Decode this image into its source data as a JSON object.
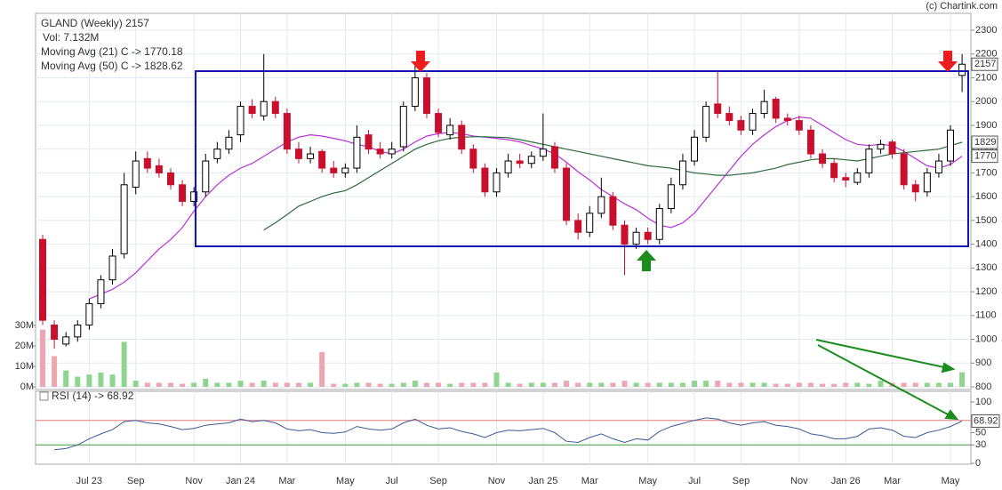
{
  "chart_data": {
    "type": "candlestick",
    "title": "GLAND (Weekly) 2157",
    "subtitle": "Vol: 7.132M",
    "credit": "(c) Chartink.com",
    "categories": [
      null,
      null,
      null,
      null,
      "Jul 23",
      null,
      null,
      null,
      "Sep",
      null,
      null,
      null,
      null,
      "Nov",
      null,
      null,
      null,
      "Jan 24",
      null,
      null,
      null,
      "Mar",
      null,
      null,
      null,
      null,
      "May",
      null,
      null,
      null,
      "Jul",
      null,
      null,
      null,
      "Sep",
      null,
      null,
      null,
      null,
      "Nov",
      null,
      null,
      null,
      "Jan 25",
      null,
      null,
      null,
      "Mar",
      null,
      null,
      null,
      null,
      "May",
      null,
      null,
      null,
      "Jul",
      null,
      null,
      null,
      "Sep",
      null,
      null,
      null,
      null,
      "Nov",
      null,
      null,
      null,
      "Jan 26",
      null,
      null,
      null,
      "Mar",
      null,
      null,
      null,
      null,
      "May",
      null
    ],
    "open": [
      1420,
      1060,
      980,
      1010,
      1060,
      1150,
      1250,
      1360,
      1640,
      1760,
      1730,
      1700,
      1650,
      1580,
      1620,
      1760,
      1800,
      1860,
      1980,
      1940,
      2000,
      1950,
      1800,
      1760,
      1790,
      1720,
      1700,
      1720,
      1860,
      1800,
      1780,
      1810,
      1980,
      2100,
      1950,
      1860,
      1900,
      1800,
      1720,
      1620,
      1700,
      1750,
      1740,
      1770,
      1810,
      1720,
      1500,
      1450,
      1530,
      1600,
      1480,
      1400,
      1450,
      1420,
      1550,
      1650,
      1750,
      1850,
      1990,
      1950,
      1920,
      1880,
      1950,
      2010,
      1930,
      1920,
      1880,
      1780,
      1740,
      1680,
      1660,
      1700,
      1800,
      1830,
      1780,
      1650,
      1620,
      1700,
      1750,
      2110
    ],
    "high": [
      1440,
      1080,
      1030,
      1080,
      1170,
      1270,
      1380,
      1700,
      1790,
      1790,
      1760,
      1720,
      1670,
      1640,
      1780,
      1830,
      1880,
      2000,
      2010,
      2200,
      2020,
      1970,
      1830,
      1810,
      1800,
      1750,
      1740,
      1900,
      1880,
      1830,
      1830,
      2000,
      2150,
      2120,
      1970,
      1930,
      1920,
      1820,
      1740,
      1720,
      1780,
      1780,
      1790,
      1950,
      1830,
      1740,
      1530,
      1560,
      1680,
      1620,
      1500,
      1470,
      1470,
      1570,
      1680,
      1780,
      1880,
      2000,
      2130,
      1980,
      1940,
      1970,
      2050,
      2020,
      1950,
      1940,
      1900,
      1800,
      1760,
      1700,
      1720,
      1820,
      1840,
      1840,
      1800,
      1670,
      1720,
      1780,
      1900,
      2200
    ],
    "low": [
      1060,
      960,
      970,
      990,
      1040,
      1130,
      1230,
      1340,
      1610,
      1700,
      1680,
      1630,
      1560,
      1560,
      1600,
      1740,
      1780,
      1830,
      1930,
      1920,
      1930,
      1780,
      1740,
      1740,
      1700,
      1680,
      1680,
      1700,
      1780,
      1760,
      1760,
      1790,
      1960,
      1930,
      1850,
      1840,
      1780,
      1700,
      1600,
      1600,
      1680,
      1720,
      1720,
      1750,
      1700,
      1480,
      1420,
      1430,
      1510,
      1460,
      1270,
      1380,
      1400,
      1400,
      1530,
      1630,
      1730,
      1830,
      1930,
      1900,
      1860,
      1860,
      1930,
      1910,
      1900,
      1860,
      1760,
      1720,
      1660,
      1640,
      1650,
      1680,
      1780,
      1760,
      1630,
      1580,
      1600,
      1680,
      1730,
      2040
    ],
    "close": [
      1080,
      1000,
      1010,
      1060,
      1150,
      1250,
      1350,
      1650,
      1750,
      1720,
      1700,
      1650,
      1580,
      1620,
      1750,
      1800,
      1850,
      1980,
      1950,
      2000,
      1950,
      1800,
      1760,
      1780,
      1720,
      1700,
      1720,
      1850,
      1800,
      1780,
      1800,
      1980,
      2100,
      1950,
      1870,
      1900,
      1800,
      1720,
      1620,
      1700,
      1750,
      1740,
      1770,
      1800,
      1720,
      1500,
      1450,
      1530,
      1600,
      1480,
      1400,
      1450,
      1420,
      1550,
      1650,
      1750,
      1850,
      1980,
      1950,
      1920,
      1880,
      1950,
      2000,
      1930,
      1920,
      1880,
      1780,
      1740,
      1680,
      1670,
      1700,
      1800,
      1820,
      1780,
      1650,
      1620,
      1700,
      1750,
      1880,
      2157
    ],
    "up_color": "#000000",
    "down_color": "#c8102e",
    "series": [
      {
        "name": "Moving Avg (21) C -> 1770.18",
        "color": "#b830d8",
        "values": [
          null,
          null,
          null,
          null,
          1170,
          1190,
          1210,
          1240,
          1280,
          1330,
          1380,
          1420,
          1470,
          1540,
          1600,
          1650,
          1690,
          1720,
          1740,
          1770,
          1800,
          1830,
          1850,
          1860,
          1855,
          1845,
          1835,
          1820,
          1810,
          1790,
          1780,
          1800,
          1830,
          1855,
          1865,
          1870,
          1865,
          1855,
          1850,
          1845,
          1840,
          1830,
          1815,
          1800,
          1780,
          1745,
          1705,
          1670,
          1630,
          1600,
          1570,
          1545,
          1510,
          1480,
          1470,
          1490,
          1530,
          1590,
          1650,
          1710,
          1770,
          1820,
          1860,
          1895,
          1920,
          1935,
          1930,
          1900,
          1870,
          1840,
          1820,
          1815,
          1820,
          1815,
          1790,
          1760,
          1730,
          1720,
          1735,
          1770.18
        ]
      },
      {
        "name": "Moving Avg (50) C -> 1828.62",
        "color": "#2e6b3a",
        "values": [
          null,
          null,
          null,
          null,
          null,
          null,
          null,
          null,
          null,
          null,
          null,
          null,
          null,
          null,
          null,
          null,
          null,
          null,
          null,
          1460,
          1490,
          1525,
          1560,
          1580,
          1600,
          1615,
          1625,
          1650,
          1680,
          1710,
          1740,
          1770,
          1800,
          1820,
          1835,
          1845,
          1850,
          1852,
          1852,
          1850,
          1848,
          1840,
          1830,
          1820,
          1810,
          1800,
          1790,
          1780,
          1770,
          1760,
          1750,
          1740,
          1730,
          1725,
          1720,
          1710,
          1700,
          1695,
          1690,
          1690,
          1695,
          1700,
          1710,
          1720,
          1735,
          1745,
          1755,
          1760,
          1760,
          1755,
          1750,
          1760,
          1770,
          1780,
          1785,
          1790,
          1795,
          1800,
          1815,
          1828.62
        ]
      }
    ],
    "ylim": [
      800,
      2300
    ],
    "yticks": [
      800,
      900,
      1000,
      1100,
      1200,
      1300,
      1400,
      1500,
      1600,
      1700,
      1800,
      1900,
      2000,
      2100,
      2200,
      2300
    ],
    "badges": [
      {
        "value": 2157,
        "label": "2157"
      },
      {
        "value": 1828.62,
        "label": "1829"
      },
      {
        "value": 1770.18,
        "label": "1770"
      }
    ],
    "grid": true,
    "volume": {
      "values": [
        28,
        15,
        8,
        5,
        6,
        7,
        6,
        22,
        3,
        2,
        2,
        2,
        1.5,
        2,
        4,
        2,
        2,
        3,
        2,
        3,
        2,
        2,
        2,
        2,
        17,
        1.5,
        1.5,
        2,
        2,
        1.5,
        1.5,
        2,
        3,
        2,
        2,
        1.5,
        2,
        2,
        2,
        7,
        2,
        1.5,
        2,
        2,
        2,
        3,
        2,
        2,
        2,
        2,
        3,
        2,
        2,
        2,
        2,
        2,
        3,
        3,
        3,
        2,
        2,
        2,
        2,
        1.5,
        1.5,
        2,
        2,
        1.5,
        1.5,
        2,
        2,
        1.5,
        3,
        2,
        2,
        2,
        2,
        2,
        2,
        7.132
      ],
      "ylim": [
        0,
        30
      ],
      "yticks": [
        {
          "value": 0,
          "label": "0M"
        },
        {
          "value": 10,
          "label": "10M"
        },
        {
          "value": 20,
          "label": "20M"
        },
        {
          "value": 30,
          "label": "30M"
        }
      ],
      "up_color": "#8fd48f",
      "down_color": "#eea6b0"
    },
    "rsi": {
      "name": "RSI (14) -> 68.92",
      "color": "#3a5a9a",
      "values": [
        null,
        22,
        24,
        30,
        40,
        48,
        55,
        68,
        70,
        66,
        64,
        60,
        55,
        57,
        62,
        64,
        66,
        72,
        68,
        70,
        66,
        56,
        53,
        55,
        50,
        49,
        51,
        60,
        56,
        54,
        56,
        66,
        72,
        62,
        56,
        58,
        52,
        48,
        42,
        50,
        54,
        53,
        55,
        57,
        50,
        36,
        34,
        42,
        48,
        40,
        34,
        40,
        38,
        52,
        60,
        65,
        70,
        74,
        72,
        66,
        62,
        66,
        68,
        62,
        60,
        56,
        48,
        45,
        40,
        40,
        44,
        56,
        58,
        54,
        44,
        42,
        50,
        54,
        60,
        68.92
      ],
      "ylim": [
        0,
        100
      ],
      "yticks": [
        0,
        30,
        50,
        100
      ],
      "levels": [
        70,
        30
      ],
      "level_colors": [
        "#e07a7a",
        "#3c9a3c"
      ],
      "badge": {
        "value": 68.92,
        "label": "68.92"
      }
    }
  }
}
